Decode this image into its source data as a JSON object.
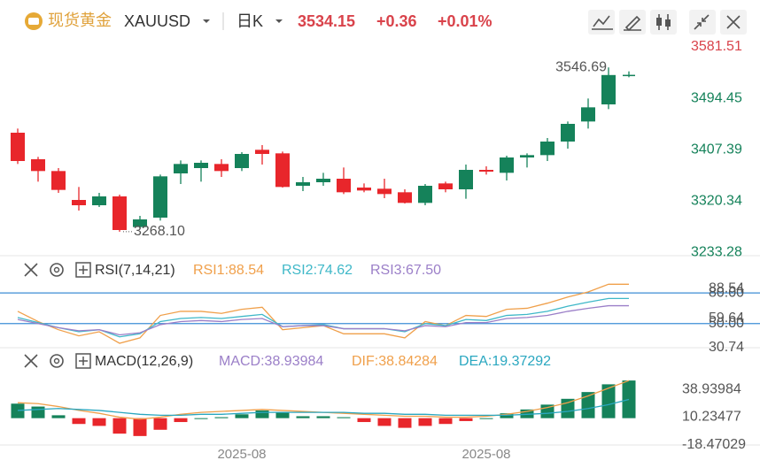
{
  "header": {
    "name": "现货黄金",
    "symbol": "XAUUSD",
    "period": "日K",
    "price": 3534.15,
    "change": {
      "value": 0.36,
      "label": "+0.36"
    },
    "change_pct": {
      "value": 0.01,
      "label": "+0.01%"
    }
  },
  "chart_data": [
    {
      "type": "candlestick",
      "x": [
        null,
        null,
        null,
        null,
        null,
        null,
        null,
        null,
        null,
        null,
        null,
        "2025-08",
        null,
        null,
        null,
        null,
        null,
        null,
        null,
        null,
        null,
        null,
        null,
        "2025-08",
        null,
        null,
        null,
        null,
        null,
        null,
        null
      ],
      "open": [
        3436,
        3391,
        3371,
        3322,
        3313,
        3328,
        3276,
        3292,
        3367,
        3376,
        3383,
        3376,
        3407,
        3401,
        3346,
        3352,
        3358,
        3343,
        3341,
        3335,
        3317,
        3350,
        3340,
        3373,
        3368,
        3394,
        3398,
        3421,
        3455,
        3484,
        3534
      ],
      "high": [
        3443,
        3395,
        3376,
        3344,
        3334,
        3331,
        3295,
        3365,
        3389,
        3389,
        3391,
        3403,
        3415,
        3404,
        3361,
        3368,
        3377,
        3350,
        3358,
        3340,
        3349,
        3353,
        3382,
        3379,
        3397,
        3401,
        3427,
        3455,
        3494,
        3546.69,
        3540
      ],
      "low": [
        3383,
        3353,
        3334,
        3304,
        3310,
        3268.1,
        3274,
        3287,
        3349,
        3353,
        3361,
        3371,
        3382,
        3343,
        3337,
        3346,
        3332,
        3335,
        3325,
        3316,
        3313,
        3335,
        3324,
        3365,
        3355,
        3377,
        3388,
        3409,
        3443,
        3476,
        3530
      ],
      "close": [
        3388,
        3371,
        3339,
        3313,
        3328,
        3271,
        3289,
        3362,
        3383,
        3385,
        3371,
        3400,
        3400,
        3344,
        3352,
        3358,
        3335,
        3338,
        3332,
        3317,
        3346,
        3340,
        3373,
        3370,
        3394,
        3398,
        3421,
        3451,
        3479,
        3533.79,
        3534.15
      ],
      "up_color": "#15825a",
      "down_color": "#e8262b",
      "ylim": [
        3229,
        3601
      ],
      "yticks": [
        3581.51,
        3494.45,
        3407.39,
        3320.34,
        3233.28
      ],
      "annotations": [
        3546.69,
        {
          "value": 3268.1,
          "label": "3268.10"
        }
      ]
    },
    {
      "type": "line",
      "title": "RSI(7,14,21)",
      "series": [
        {
          "name": "RSI1:88.54",
          "color": "#f0a04b",
          "values": [
            62,
            52,
            44,
            38,
            42,
            30.74,
            36,
            58,
            62,
            62,
            60,
            64,
            66,
            44,
            46,
            48,
            40,
            40,
            40,
            36,
            52,
            48,
            58,
            57,
            64,
            65,
            70,
            76,
            81,
            88.54,
            88.54
          ]
        },
        {
          "name": "RSI2:74.62",
          "color": "#3fb8c8",
          "values": [
            56,
            51,
            46,
            42,
            44,
            37,
            40,
            52,
            55,
            56,
            55,
            57,
            59,
            47,
            48,
            49,
            45,
            45,
            45,
            42,
            50,
            48,
            54,
            53,
            58,
            59,
            62,
            67,
            71,
            74.62,
            74.62
          ]
        },
        {
          "name": "RSI3:67.50",
          "color": "#9b7fc8",
          "values": [
            54,
            50,
            46,
            43,
            44,
            39,
            41,
            49,
            52,
            53,
            52,
            54,
            55,
            47,
            48,
            48,
            45,
            45,
            45,
            43,
            48,
            47,
            51,
            51,
            55,
            56,
            58,
            62,
            65,
            67.5,
            67.5
          ]
        }
      ],
      "ylim": [
        29,
        107
      ],
      "yticks": [
        88.54,
        59.64,
        30.74
      ],
      "levels": [
        {
          "value": 80,
          "label": "80.00"
        },
        {
          "value": 50,
          "label": "50.00"
        }
      ],
      "level_color": "#3d8ed6"
    },
    {
      "type": "macd",
      "title": "MACD(12,26,9)",
      "up_color": "#15825a",
      "down_color": "#e8262b",
      "series": [
        {
          "name": "MACD:38.93984",
          "type": "bar",
          "color": "#9b7fc8",
          "values": [
            15,
            12,
            3,
            -6,
            -8,
            -16,
            -18.47029,
            -12,
            -4,
            0,
            1,
            4,
            8,
            6,
            2,
            2,
            1,
            -4,
            -8,
            -10,
            -8,
            -6,
            -3,
            0,
            5,
            9,
            14,
            20,
            27,
            35,
            38.93984
          ]
        },
        {
          "name": "DIF:38.84284",
          "type": "line",
          "color": "#f0a04b",
          "values": [
            16,
            15,
            12,
            8,
            5,
            1,
            -1,
            1,
            4,
            6,
            7,
            8,
            9,
            8,
            7,
            6,
            5,
            4,
            3,
            2,
            2,
            1,
            1,
            2,
            4,
            7,
            11,
            16,
            23,
            31,
            38.84284
          ]
        },
        {
          "name": "DEA:19.37292",
          "type": "line",
          "color": "#2aa7c0",
          "values": [
            8,
            9,
            10,
            9,
            8,
            6,
            4,
            3,
            3,
            4,
            4,
            5,
            6,
            6,
            6,
            6,
            6,
            5,
            5,
            4,
            4,
            3,
            3,
            3,
            3,
            4,
            5,
            7,
            10,
            14,
            19.37292
          ]
        }
      ],
      "ylim": [
        -25,
        50
      ],
      "yticks": [
        38.93984,
        10.23477,
        -18.47029
      ]
    }
  ]
}
